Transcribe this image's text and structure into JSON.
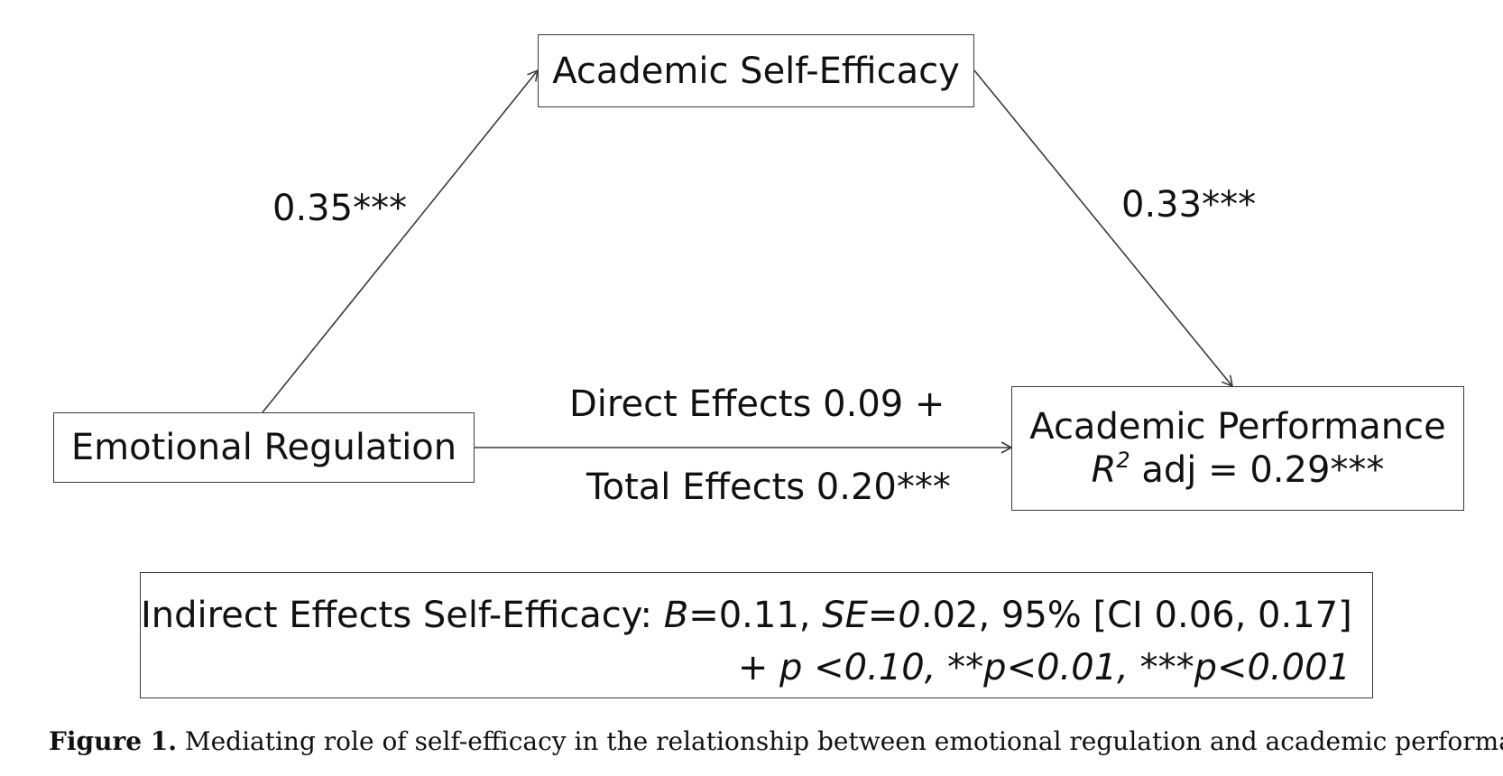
{
  "nodes": {
    "mediator": "Academic Self-Efficacy",
    "predictor": "Emotional Regulation",
    "outcome": "Academic Performance",
    "outcome_r2": {
      "symbol": "R",
      "superscript": "2",
      "rest": " adj = 0.29***"
    }
  },
  "paths": {
    "a": "0.35***",
    "b": "0.33***",
    "direct": "Direct Effects 0.09 +",
    "total": "Total Effects 0.20***"
  },
  "indirect": {
    "prefix": "Indirect Effects Self-Efficacy: ",
    "b_symbol": "B",
    "b_value": "=0.11, ",
    "se_symbol": "SE=0",
    "se_value": ".02, 95% [CI 0.06, 0.17]",
    "p_note": "+ p <0.10, **p<0.01, ***p<0.001"
  },
  "caption": {
    "label": "Figure 1.",
    "text": " Mediating role of self-efficacy in the relationship between emotional regulation and academic performance."
  },
  "colors": {
    "line": "#3a3a3a",
    "text": "#111111",
    "background": "#ffffff"
  }
}
